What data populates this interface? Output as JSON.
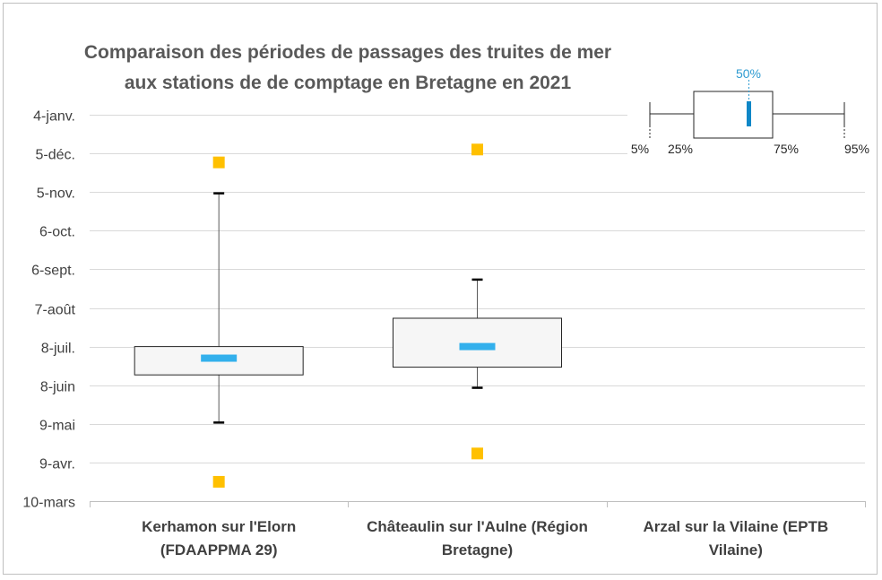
{
  "chart_data": {
    "type": "boxplot",
    "title": "Comparaison des périodes de passages des truites de mer aux stations de de comptage en Bretagne en 2021",
    "title_lines": [
      "Comparaison des périodes de passages des truites de mer",
      "aux stations de de comptage en Bretagne en 2021"
    ],
    "y_axis": {
      "scale": "date",
      "min": "2021-03-10",
      "max": "2022-01-04",
      "tick_values": [
        "2021-03-10",
        "2021-04-09",
        "2021-05-09",
        "2021-06-08",
        "2021-07-08",
        "2021-08-07",
        "2021-09-06",
        "2021-10-06",
        "2021-11-05",
        "2021-12-05",
        "2022-01-04"
      ],
      "tick_labels": [
        "10-mars",
        "9-avr.",
        "9-mai",
        "8-juin",
        "8-juil.",
        "7-août",
        "6-sept.",
        "6-oct.",
        "5-nov.",
        "5-déc.",
        "4-janv."
      ],
      "grid": true
    },
    "categories": [
      [
        "Kerhamon sur l'Elorn",
        "(FDAAPPMA 29)"
      ],
      [
        "Châteaulin sur l'Aulne (Région",
        "Bretagne)"
      ],
      [
        "Arzal sur la Vilaine (EPTB",
        "Vilaine)"
      ]
    ],
    "boxes": [
      {
        "min": "2021-03-25",
        "p5": "2021-05-10",
        "p25": "2021-06-16",
        "median": "2021-06-29",
        "p75": "2021-07-08",
        "p95": "2021-11-04",
        "max": "2021-11-28"
      },
      {
        "min": "2021-04-16",
        "p5": "2021-06-06",
        "p25": "2021-06-22",
        "median": "2021-07-08",
        "p75": "2021-07-30",
        "p95": "2021-08-29",
        "max": "2021-12-08"
      },
      null
    ],
    "legend": {
      "position": "top-right",
      "labels": {
        "p5": "5%",
        "p25": "25%",
        "median": "50%",
        "p75": "75%",
        "p95": "95%"
      }
    },
    "colors": {
      "median": "#33b0ec",
      "extreme": "#ffc000",
      "box_fill": "#f6f6f6",
      "box_stroke": "#262626",
      "whisker": "#595959",
      "grid": "#d9d9d9",
      "legend_median": "#0f87c7",
      "legend_median_label": "#2e9bd1"
    }
  }
}
